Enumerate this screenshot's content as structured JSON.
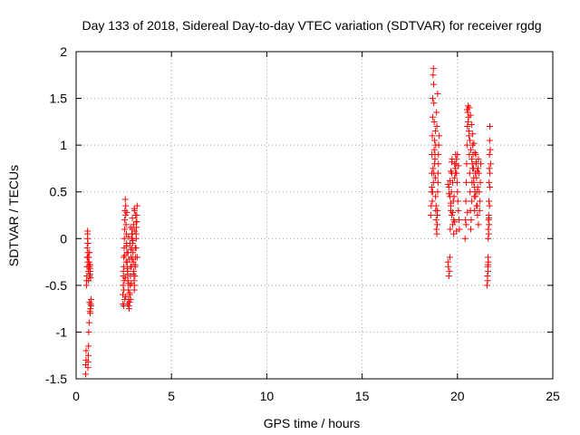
{
  "chart_data": {
    "type": "scatter",
    "title": "Day 133 of 2018, Sidereal Day-to-day VTEC variation (SDTVAR) for receiver rgdg",
    "xlabel": "GPS time / hours",
    "ylabel": "SDTVAR / TECUs",
    "xlim": [
      0,
      25
    ],
    "ylim": [
      -1.5,
      2
    ],
    "xticks": [
      0,
      5,
      10,
      15,
      20,
      25
    ],
    "xtick_labels": [
      "0",
      "5",
      "10",
      "15",
      "20",
      "25"
    ],
    "yticks": [
      -1.5,
      -1,
      -0.5,
      0,
      0.5,
      1,
      1.5,
      2
    ],
    "ytick_labels": [
      "-1.5",
      "-1",
      "-0.5",
      "0",
      "0.5",
      "1",
      "1.5",
      "2"
    ],
    "grid": true,
    "marker": "+",
    "color": "#ff0000",
    "series": [
      {
        "name": "SDTVAR",
        "x": [
          0.5,
          0.5,
          0.52,
          0.52,
          0.54,
          0.55,
          0.56,
          0.57,
          0.58,
          0.58,
          0.6,
          0.6,
          0.61,
          0.62,
          0.62,
          0.64,
          0.65,
          0.66,
          0.66,
          0.68,
          0.7,
          0.7,
          0.72,
          0.72,
          0.73,
          0.74,
          0.75,
          0.76,
          0.78,
          0.78,
          0.62,
          0.63,
          0.64,
          0.65,
          0.66,
          0.68,
          0.6,
          0.62,
          0.6,
          0.7,
          0.72,
          0.74,
          0.75,
          0.72,
          0.7,
          2.45,
          2.46,
          2.47,
          2.48,
          2.5,
          2.5,
          2.52,
          2.53,
          2.54,
          2.55,
          2.56,
          2.58,
          2.6,
          2.6,
          2.62,
          2.64,
          2.65,
          2.66,
          2.68,
          2.7,
          2.72,
          2.74,
          2.75,
          2.76,
          2.78,
          2.8,
          2.82,
          2.84,
          2.85,
          2.86,
          2.88,
          2.9,
          2.92,
          2.94,
          2.95,
          2.96,
          2.98,
          3.0,
          3.02,
          3.04,
          3.05,
          3.06,
          3.08,
          3.1,
          3.12,
          3.14,
          3.15,
          3.16,
          3.18,
          3.2,
          2.5,
          2.6,
          2.7,
          2.8,
          2.9,
          3.0,
          3.1,
          2.55,
          2.65,
          2.75,
          2.85,
          2.95,
          3.05,
          3.15,
          2.58,
          2.68,
          2.78,
          2.88,
          2.98,
          3.08,
          3.18,
          2.62,
          2.72,
          2.82,
          2.92,
          3.02,
          3.12,
          2.5,
          2.55,
          3.1,
          3.15,
          3.2,
          2.48,
          2.52,
          2.9,
          2.95,
          2.7,
          2.75,
          2.66,
          2.86,
          3.06,
          18.6,
          18.62,
          18.64,
          18.65,
          18.66,
          18.68,
          18.7,
          18.7,
          18.72,
          18.74,
          18.75,
          18.76,
          18.78,
          18.8,
          18.82,
          18.84,
          18.85,
          18.86,
          18.88,
          18.9,
          18.92,
          18.94,
          18.95,
          18.96,
          18.98,
          19.0,
          19.02,
          19.04,
          18.66,
          18.72,
          18.78,
          18.84,
          18.9,
          18.96,
          18.68,
          18.74,
          18.8,
          18.86,
          18.92,
          18.98,
          18.7,
          18.76,
          18.82,
          18.88,
          18.94,
          19.0,
          19.5,
          19.52,
          19.55,
          19.58,
          19.6,
          19.62,
          19.65,
          19.68,
          19.7,
          19.72,
          19.75,
          19.78,
          19.8,
          19.82,
          19.85,
          19.88,
          19.9,
          19.92,
          19.95,
          19.98,
          20.0,
          20.02,
          20.05,
          20.08,
          20.1,
          19.55,
          19.6,
          19.65,
          19.7,
          19.75,
          19.8,
          19.85,
          19.9,
          19.95,
          20.0,
          20.05,
          19.6,
          19.65,
          19.7,
          19.5,
          19.55,
          19.65,
          19.75,
          19.85,
          19.95,
          20.4,
          20.42,
          20.44,
          20.46,
          20.48,
          20.5,
          20.52,
          20.54,
          20.56,
          20.58,
          20.6,
          20.62,
          20.64,
          20.66,
          20.68,
          20.7,
          20.72,
          20.74,
          20.76,
          20.78,
          20.8,
          20.82,
          20.84,
          20.86,
          20.88,
          20.9,
          20.92,
          20.94,
          20.96,
          20.98,
          21.0,
          21.02,
          21.04,
          21.06,
          21.08,
          21.1,
          21.12,
          21.14,
          21.16,
          21.18,
          21.2,
          21.22,
          20.5,
          20.55,
          20.6,
          20.65,
          20.7,
          20.75,
          20.8,
          20.85,
          20.9,
          20.95,
          21.0,
          21.05,
          21.1,
          20.62,
          20.68,
          20.74,
          20.8,
          20.86,
          20.92,
          20.98,
          21.04,
          20.45,
          20.52,
          21.55,
          21.57,
          21.59,
          21.6,
          21.61,
          21.62,
          21.63,
          21.64,
          21.65,
          21.66,
          21.67,
          21.68,
          21.69,
          21.7,
          21.72,
          21.74,
          21.6,
          21.62,
          21.64,
          21.66,
          21.68,
          21.7,
          21.58,
          21.6,
          21.65,
          21.7
        ],
        "y": [
          -1.45,
          -1.35,
          -1.3,
          -1.2,
          -0.5,
          -0.45,
          -0.4,
          -0.3,
          -0.2,
          -0.1,
          0.05,
          0.08,
          -0.05,
          -0.15,
          -0.25,
          -0.35,
          -0.45,
          -0.3,
          -0.2,
          -0.25,
          -0.3,
          -0.4,
          -0.38,
          -0.32,
          -0.28,
          -0.8,
          -0.75,
          -0.7,
          -0.72,
          -0.65,
          -1.38,
          -1.32,
          -1.25,
          -1.15,
          -1.0,
          -0.9,
          0.0,
          -0.05,
          -0.2,
          -0.15,
          -0.28,
          -0.35,
          -0.42,
          -0.78,
          -0.68,
          -0.6,
          -0.7,
          -0.5,
          -0.4,
          -0.3,
          -0.2,
          -0.1,
          0.0,
          0.1,
          0.2,
          0.3,
          0.42,
          0.35,
          0.25,
          0.15,
          0.05,
          -0.05,
          -0.15,
          -0.25,
          -0.35,
          -0.45,
          -0.55,
          -0.65,
          -0.72,
          -0.75,
          -0.68,
          -0.6,
          -0.5,
          -0.4,
          -0.3,
          -0.2,
          -0.1,
          0.0,
          0.1,
          0.05,
          -0.05,
          -0.15,
          -0.25,
          -0.35,
          -0.45,
          -0.55,
          -0.5,
          -0.4,
          -0.3,
          -0.2,
          -0.1,
          0.0,
          0.12,
          0.25,
          0.35,
          -0.55,
          -0.62,
          -0.7,
          -0.58,
          -0.48,
          -0.38,
          -0.28,
          -0.18,
          -0.08,
          0.02,
          0.12,
          0.22,
          0.32,
          0.18,
          -0.42,
          -0.32,
          -0.22,
          -0.12,
          -0.02,
          0.08,
          0.18,
          -0.25,
          -0.15,
          -0.05,
          0.05,
          0.15,
          0.25,
          -0.72,
          -0.65,
          -0.1,
          0.05,
          -0.2,
          -0.35,
          -0.45,
          -0.3,
          -0.22,
          -0.38,
          -0.48,
          0.28,
          -0.65,
          0.3,
          0.25,
          0.35,
          0.5,
          0.7,
          0.9,
          1.1,
          1.3,
          1.5,
          1.75,
          1.82,
          1.65,
          1.45,
          1.25,
          1.05,
          0.85,
          0.65,
          0.45,
          0.3,
          0.2,
          0.1,
          0.05,
          0.15,
          0.3,
          0.5,
          0.7,
          0.9,
          1.0,
          1.1,
          0.55,
          0.75,
          0.95,
          1.15,
          1.35,
          1.55,
          0.4,
          0.6,
          0.8,
          1.0,
          1.2,
          0.6,
          0.5,
          0.7,
          0.9,
          0.35,
          0.25,
          0.8,
          -0.25,
          -0.3,
          -0.4,
          -0.35,
          -0.2,
          0.1,
          0.3,
          0.5,
          0.7,
          0.85,
          0.6,
          0.4,
          0.2,
          0.45,
          0.65,
          0.75,
          0.9,
          0.8,
          0.7,
          0.6,
          0.5,
          0.4,
          0.3,
          0.2,
          0.1,
          0.55,
          0.45,
          0.35,
          0.25,
          0.15,
          0.05,
          0.8,
          0.7,
          0.85,
          0.9,
          0.78,
          0.62,
          0.72,
          0.82,
          0.58,
          0.48,
          0.38,
          0.28,
          0.18,
          0.08,
          0.0,
          0.2,
          0.4,
          0.6,
          0.8,
          1.0,
          1.2,
          1.35,
          1.42,
          1.3,
          1.1,
          0.9,
          0.7,
          0.5,
          0.3,
          0.1,
          0.2,
          0.4,
          0.6,
          0.8,
          1.0,
          0.9,
          0.75,
          0.6,
          0.45,
          0.3,
          0.5,
          0.7,
          0.9,
          0.8,
          0.65,
          0.5,
          0.35,
          0.55,
          0.75,
          0.85,
          0.7,
          0.5,
          0.3,
          0.4,
          0.6,
          0.8,
          1.38,
          1.25,
          1.15,
          1.05,
          0.95,
          0.85,
          0.75,
          0.65,
          0.55,
          0.45,
          0.35,
          0.25,
          0.15,
          1.4,
          1.32,
          1.22,
          1.12,
          1.02,
          0.92,
          0.82,
          0.72,
          0.15,
          0.28,
          -0.5,
          -0.4,
          -0.3,
          -0.2,
          0.0,
          0.1,
          0.2,
          0.25,
          0.4,
          0.6,
          0.75,
          0.9,
          1.05,
          1.2,
          0.95,
          0.8,
          -0.35,
          -0.25,
          0.05,
          0.15,
          0.35,
          0.55,
          -0.45,
          -0.28,
          0.22,
          0.7
        ]
      }
    ]
  }
}
